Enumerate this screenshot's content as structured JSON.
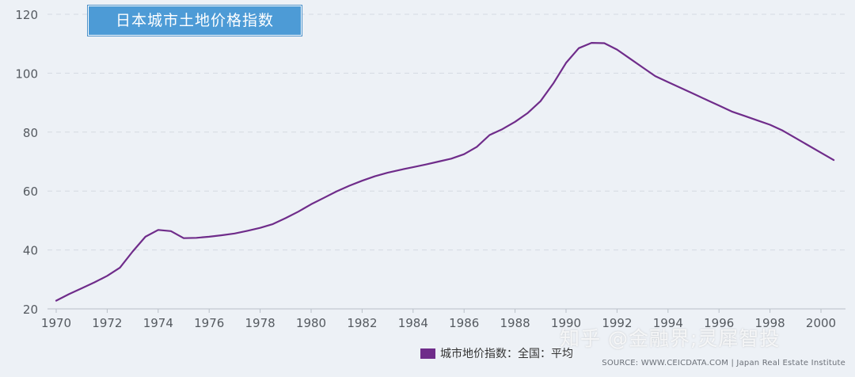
{
  "chart_data": {
    "type": "line",
    "title": "日本城市土地价格指数",
    "y_ticks": [
      20,
      40,
      60,
      80,
      100,
      120
    ],
    "x_ticks": [
      "1970",
      "1972",
      "1974",
      "1976",
      "1978",
      "1980",
      "1982",
      "1984",
      "1986",
      "1988",
      "1990",
      "1992",
      "1994",
      "1996",
      "1998",
      "2000"
    ],
    "xlim": [
      1970,
      2000.9
    ],
    "ylim": [
      20,
      122
    ],
    "grid": "horizontal dashed",
    "legend_position": "bottom",
    "series": [
      {
        "name": "城市地价指数：全国：平均",
        "color": "#6f2c8a",
        "x": [
          1970,
          1970.5,
          1971,
          1971.5,
          1972,
          1972.5,
          1973,
          1973.5,
          1974,
          1974.5,
          1975,
          1975.5,
          1976,
          1976.5,
          1977,
          1977.5,
          1978,
          1978.5,
          1979,
          1979.5,
          1980,
          1980.5,
          1981,
          1981.5,
          1982,
          1982.5,
          1983,
          1983.5,
          1984,
          1984.5,
          1985,
          1985.5,
          1986,
          1986.5,
          1987,
          1987.5,
          1988,
          1988.5,
          1989,
          1989.5,
          1990,
          1990.5,
          1991,
          1991.5,
          1992,
          1992.5,
          1993,
          1993.5,
          1994,
          1994.5,
          1995,
          1995.5,
          1996,
          1996.5,
          1997,
          1997.5,
          1998,
          1998.5,
          1999,
          1999.5,
          2000,
          2000.5
        ],
        "values": [
          22.8,
          25.0,
          27.0,
          29.0,
          31.2,
          34.0,
          39.5,
          44.5,
          46.8,
          46.4,
          44.0,
          44.1,
          44.5,
          45.0,
          45.6,
          46.5,
          47.5,
          48.8,
          50.8,
          53.0,
          55.5,
          57.7,
          59.9,
          61.8,
          63.5,
          65.0,
          66.2,
          67.2,
          68.1,
          69.0,
          70.0,
          71.0,
          72.5,
          75.0,
          79.0,
          81.0,
          83.5,
          86.5,
          90.5,
          96.5,
          103.5,
          108.5,
          110.3,
          110.2,
          108.0,
          105.0,
          102.0,
          99.0,
          97.0,
          95.0,
          93.0,
          91.0,
          89.0,
          87.0,
          85.5,
          84.0,
          82.5,
          80.5,
          78.0,
          75.5,
          73.0,
          70.5
        ]
      }
    ]
  },
  "source_note": "SOURCE: WWW.CEICDATA.COM | Japan Real Estate Institute",
  "watermark": "知乎 @金融界;灵犀智投"
}
